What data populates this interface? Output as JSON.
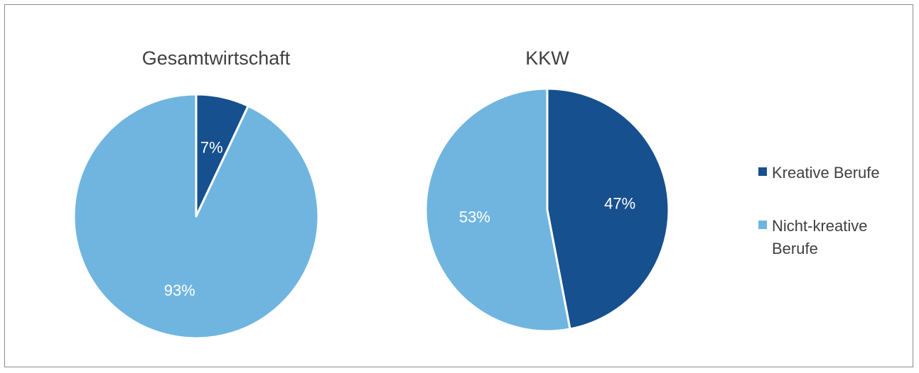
{
  "chart_data": [
    {
      "type": "pie",
      "title": "Gesamtwirtschaft",
      "slices": [
        {
          "name": "Kreative Berufe",
          "value": 7,
          "label": "7%"
        },
        {
          "name": "Nicht-kreative Berufe",
          "value": 93,
          "label": "93%"
        }
      ]
    },
    {
      "type": "pie",
      "title": "KKW",
      "slices": [
        {
          "name": "Kreative Berufe",
          "value": 47,
          "label": "47%"
        },
        {
          "name": "Nicht-kreative Berufe",
          "value": 53,
          "label": "53%"
        }
      ]
    }
  ],
  "legend": {
    "position": "right",
    "items": [
      {
        "lines": [
          "Kreative Berufe"
        ],
        "color": "#16508E"
      },
      {
        "lines": [
          "Nicht-kreative",
          "Berufe"
        ],
        "color": "#70B5E0"
      }
    ]
  }
}
